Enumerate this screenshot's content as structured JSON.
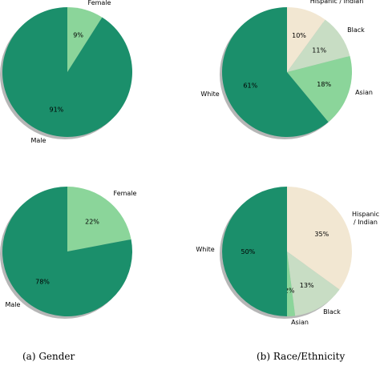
{
  "chart_data": [
    {
      "type": "pie",
      "slices": [
        {
          "label": "Female",
          "value": 9,
          "pct_text": "9%",
          "color": "#8bd59a"
        },
        {
          "label": "Male",
          "value": 91,
          "pct_text": "91%",
          "color": "#1b8f6b"
        }
      ]
    },
    {
      "type": "pie",
      "slices": [
        {
          "label": "Hispanic / Indian",
          "value": 10,
          "pct_text": "10%",
          "color": "#f2e7d2"
        },
        {
          "label": "Black",
          "value": 11,
          "pct_text": "11%",
          "color": "#c8ddc4"
        },
        {
          "label": "Asian",
          "value": 18,
          "pct_text": "18%",
          "color": "#8bd59a"
        },
        {
          "label": "White",
          "value": 61,
          "pct_text": "61%",
          "color": "#1b8f6b"
        }
      ]
    },
    {
      "type": "pie",
      "slices": [
        {
          "label": "Female",
          "value": 22,
          "pct_text": "22%",
          "color": "#8bd59a"
        },
        {
          "label": "Male",
          "value": 78,
          "pct_text": "78%",
          "color": "#1b8f6b"
        }
      ]
    },
    {
      "type": "pie",
      "slices": [
        {
          "label": "Hispanic\n/ Indian",
          "value": 35,
          "pct_text": "35%",
          "color": "#f2e7d2"
        },
        {
          "label": "Black",
          "value": 13,
          "pct_text": "13%",
          "color": "#c8ddc4"
        },
        {
          "label": "Asian",
          "value": 2,
          "pct_text": "2%",
          "color": "#8bd59a"
        },
        {
          "label": "White",
          "value": 50,
          "pct_text": "50%",
          "color": "#1b8f6b"
        }
      ]
    }
  ],
  "captions": {
    "gender": "(a) Gender",
    "race": "(b) Race/Ethnicity"
  }
}
